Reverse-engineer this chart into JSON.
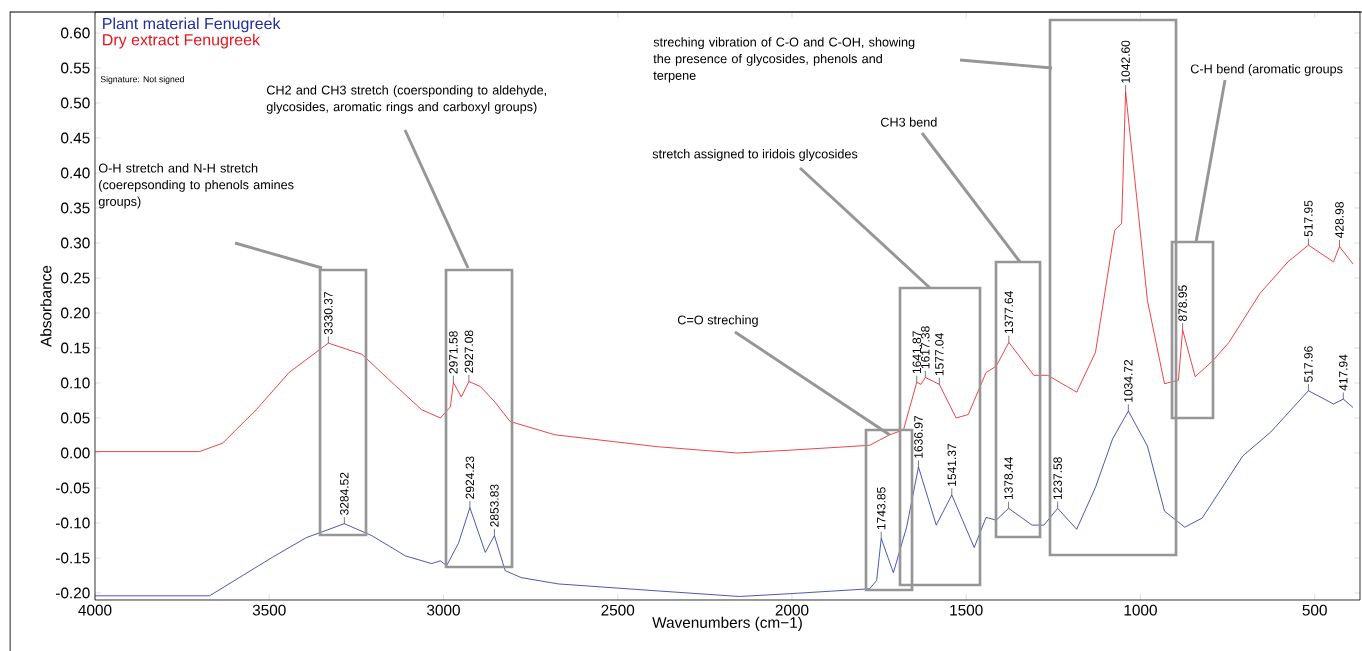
{
  "chart_data": {
    "type": "line",
    "xlabel": "Wavenumbers (cm−1)",
    "ylabel": "Absorbance",
    "xlim": [
      4000,
      370
    ],
    "ylim": [
      -0.21,
      0.63
    ],
    "xticks": [
      4000,
      3500,
      3000,
      2500,
      2000,
      1500,
      1000,
      500
    ],
    "yticks": [
      {
        "value": -0.2,
        "label": "-0.20"
      },
      {
        "value": -0.15,
        "label": "-0.15"
      },
      {
        "value": -0.1,
        "label": "-0.10"
      },
      {
        "value": -0.05,
        "label": "-0.05"
      },
      {
        "value": 0,
        "label": "0.00"
      },
      {
        "value": 0.05,
        "label": "0.05"
      },
      {
        "value": 0.1,
        "label": "0.10"
      },
      {
        "value": 0.15,
        "label": "0.15"
      },
      {
        "value": 0.2,
        "label": "0.20"
      },
      {
        "value": 0.25,
        "label": "0.25"
      },
      {
        "value": 0.3,
        "label": "0.30"
      },
      {
        "value": 0.35,
        "label": "0.35"
      },
      {
        "value": 0.4,
        "label": "0.40"
      },
      {
        "value": 0.45,
        "label": "0.45"
      },
      {
        "value": 0.5,
        "label": "0.50"
      },
      {
        "value": 0.55,
        "label": "0.55"
      },
      {
        "value": 0.6,
        "label": "0.60"
      }
    ],
    "legend": "top left",
    "series": [
      {
        "name": "Plant material Fenugreek",
        "color": "#1f2fa0",
        "x": [
          4000,
          3671,
          3586,
          3491,
          3394,
          3284.52,
          3206,
          3109,
          3034,
          3009,
          2991,
          2957,
          2924.23,
          2880,
          2853.83,
          2823,
          2777,
          2671,
          2386,
          2151,
          2006,
          1777,
          1757,
          1743.85,
          1709,
          1671,
          1636.97,
          1586,
          1541.37,
          1477,
          1443,
          1414,
          1378.44,
          1311,
          1277,
          1237.58,
          1183,
          1129,
          1080,
          1034.72,
          980,
          931,
          873,
          823,
          706,
          626,
          517.96,
          446,
          417.94,
          390
        ],
        "values": [
          -0.204,
          -0.204,
          -0.178,
          -0.149,
          -0.121,
          -0.101,
          -0.118,
          -0.147,
          -0.158,
          -0.154,
          -0.161,
          -0.129,
          -0.078,
          -0.142,
          -0.118,
          -0.168,
          -0.178,
          -0.187,
          -0.197,
          -0.205,
          -0.201,
          -0.194,
          -0.182,
          -0.122,
          -0.171,
          -0.106,
          -0.02,
          -0.103,
          -0.06,
          -0.135,
          -0.092,
          -0.096,
          -0.079,
          -0.103,
          -0.103,
          -0.079,
          -0.109,
          -0.049,
          0.02,
          0.06,
          0.01,
          -0.083,
          -0.106,
          -0.093,
          -0.004,
          0.03,
          0.089,
          0.07,
          0.077,
          0.065
        ]
      },
      {
        "name": "Dry extract Fenugreek",
        "color": "#e8141b",
        "x": [
          4000,
          3700,
          3634,
          3537,
          3443,
          3330.37,
          3234,
          3157,
          3063,
          3009,
          2980,
          2971.58,
          2949,
          2927.08,
          2894,
          2851,
          2809,
          2680,
          2386,
          2157,
          2006,
          1777,
          1720,
          1680,
          1641.87,
          1630,
          1617.38,
          1577.04,
          1529,
          1494,
          1443,
          1414,
          1377.64,
          1306,
          1266,
          1183,
          1129,
          1074,
          1054,
          1042.6,
          1011,
          980,
          931,
          891,
          878.95,
          843,
          794,
          746,
          657,
          577,
          517.95,
          446,
          428.98,
          390
        ],
        "values": [
          0.002,
          0.002,
          0.014,
          0.062,
          0.115,
          0.157,
          0.141,
          0.105,
          0.062,
          0.05,
          0.066,
          0.101,
          0.08,
          0.102,
          0.095,
          0.072,
          0.045,
          0.026,
          0.009,
          0.0,
          0.004,
          0.011,
          0.026,
          0.033,
          0.101,
          0.098,
          0.108,
          0.098,
          0.05,
          0.055,
          0.115,
          0.124,
          0.158,
          0.111,
          0.111,
          0.087,
          0.144,
          0.318,
          0.328,
          0.516,
          0.366,
          0.218,
          0.099,
          0.104,
          0.176,
          0.109,
          0.131,
          0.158,
          0.228,
          0.273,
          0.297,
          0.273,
          0.295,
          0.27
        ]
      }
    ],
    "annotations": [
      "Signature: Not signed",
      "O-H stretch and N-H stretch (coerepsonding to phenols amines groups)",
      "CH2 and CH3 stretch (coersponding to aldehyde, glycosides, aromatic rings and carboxyl groups)",
      "stretch assigned to iridois glycosides",
      {
        "text": "C=O streching",
        "x": 1720,
        "y": 0.026
      },
      "CH3 bend",
      "streching vibration of C-O and C-OH, showing the presence of glycosides, phenols and terpene",
      "C-H bend (aromatic groups",
      {
        "text": "3330.37",
        "x": 3330.37,
        "y": 0.157
      },
      {
        "text": "2971.58",
        "x": 2971.58,
        "y": 0.101
      },
      {
        "text": "2927.08",
        "x": 2927.08,
        "y": 0.102
      },
      {
        "text": "1641.87",
        "x": 1641.87,
        "y": 0.101
      },
      {
        "text": "1617.38",
        "x": 1617.38,
        "y": 0.108
      },
      {
        "text": "1577.04",
        "x": 1577.04,
        "y": 0.098
      },
      {
        "text": "1377.64",
        "x": 1377.64,
        "y": 0.158
      },
      {
        "text": "1042.60",
        "x": 1042.6,
        "y": 0.516
      },
      {
        "text": "878.95",
        "x": 878.95,
        "y": 0.176
      },
      {
        "text": "517.95",
        "x": 517.95,
        "y": 0.297
      },
      {
        "text": "428.98",
        "x": 428.98,
        "y": 0.295
      },
      {
        "text": "3284.52",
        "x": 3284.52,
        "y": -0.101
      },
      {
        "text": "2924.23",
        "x": 2924.23,
        "y": -0.078
      },
      {
        "text": "2853.83",
        "x": 2853.83,
        "y": -0.118
      },
      {
        "text": "1743.85",
        "x": 1743.85,
        "y": -0.122
      },
      {
        "text": "1636.97",
        "x": 1636.97,
        "y": -0.02
      },
      {
        "text": "1541.37",
        "x": 1541.37,
        "y": -0.06
      },
      {
        "text": "1378.44",
        "x": 1378.44,
        "y": -0.079
      },
      {
        "text": "1237.58",
        "x": 1237.58,
        "y": -0.079
      },
      {
        "text": "1034.72",
        "x": 1034.72,
        "y": 0.06
      },
      {
        "text": "517.96",
        "x": 517.96,
        "y": 0.089
      },
      {
        "text": "417.94",
        "x": 417.94,
        "y": 0.077
      }
    ]
  }
}
